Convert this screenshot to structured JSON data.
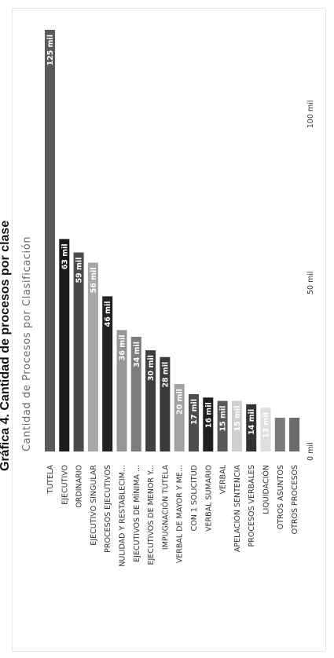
{
  "page": {
    "title": "Gráfica 4. Cantidad de procesos por clase"
  },
  "chart_data": {
    "type": "bar",
    "title": "Cantidad de Procesos por Clasificación",
    "categories": [
      "TUTELA",
      "EJECUTIVO",
      "ORDINARIO",
      "EJECUTIVO SINGULAR",
      "PROCESOS EJECUTIVOS",
      "NULIDAD Y RESTABLECIM...",
      "EJECUTIVOS DE MÍNIMA ...",
      "EJECUTIVOS DE MENOR Y...",
      "IMPUGNACIÓN TUTELA",
      "VERBAL DE MAYOR Y ME...",
      "CON 1 SOLICITUD",
      "VERBAL SUMARIO",
      "VERBAL",
      "APELACIÓN SENTENCIA",
      "PROCESOS VERBALES",
      "LIQUIDACIÓN",
      "OTROS ASUNTOS",
      "OTROS PROCESOS"
    ],
    "values": [
      125,
      63,
      59,
      56,
      46,
      36,
      34,
      30,
      28,
      20,
      17,
      16,
      15,
      15,
      14,
      13,
      10,
      10
    ],
    "data_labels": [
      "125 mil",
      "63 mil",
      "59 mil",
      "56 mil",
      "46 mil",
      "36 mil",
      "34 mil",
      "30 mil",
      "28 mil",
      "20 mil",
      "17 mil",
      "16 mil",
      "15 mil",
      "15 mil",
      "14 mil",
      "13 mil",
      "",
      ""
    ],
    "colors": [
      "#5a5a5a",
      "#1b1b1b",
      "#4a4a4a",
      "#a8a8a8",
      "#222222",
      "#969696",
      "#7d7d7d",
      "#3f3f3f",
      "#3a3a3a",
      "#a2a2a2",
      "#4c4c4c",
      "#1e1e1e",
      "#595959",
      "#cfcfcf",
      "#333333",
      "#dedede",
      "#7a7a7a",
      "#6a6a6a"
    ],
    "value_axis": {
      "ticks": [
        0,
        50,
        100
      ],
      "tick_labels": [
        "0 mil",
        "50 mil",
        "100 mil"
      ],
      "range": [
        0,
        125
      ]
    },
    "orientation": "rotated",
    "legend": "none",
    "grid": false
  }
}
